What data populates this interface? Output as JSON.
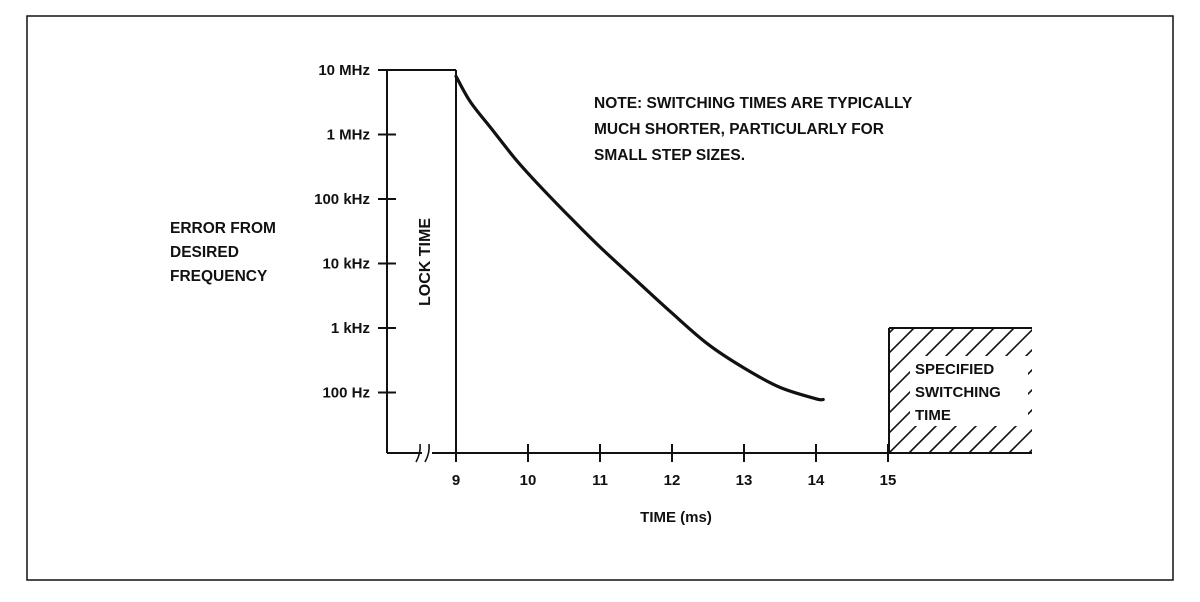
{
  "chart_data": {
    "type": "line",
    "y_scale": "log",
    "xlabel": "TIME (ms)",
    "ylabel_lines": [
      "ERROR FROM",
      "DESIRED",
      "FREQUENCY"
    ],
    "x_ticks": [
      "9",
      "10",
      "11",
      "12",
      "13",
      "14",
      "15"
    ],
    "y_ticks": [
      "10 MHz",
      "1 MHz",
      "100 kHz",
      "10 kHz",
      "1 kHz",
      "100 Hz"
    ],
    "y_tick_values_hz": [
      10000000,
      1000000,
      100000,
      10000,
      1000,
      100
    ],
    "xlim": [
      9,
      15
    ],
    "ylim_hz": [
      10,
      10000000
    ],
    "series": [
      {
        "x": [
          9.0,
          9.2,
          9.5,
          9.8,
          10.0,
          10.3,
          10.6,
          11.0,
          11.5,
          12.0,
          12.5,
          13.0,
          13.5,
          14.0,
          14.1
        ],
        "y_hz": [
          8000000,
          3200000,
          1200000,
          450000,
          250000,
          110000,
          50000,
          18000,
          5500,
          1700,
          560,
          240,
          120,
          80,
          78
        ]
      }
    ],
    "lock_time": {
      "label": "LOCK TIME",
      "x_end": 9
    },
    "specified_region": {
      "label_lines": [
        "SPECIFIED",
        "SWITCHING",
        "TIME"
      ],
      "x_start": 15
    },
    "note_lines": [
      "NOTE: SWITCHING TIMES ARE TYPICALLY",
      "MUCH SHORTER, PARTICULARLY FOR",
      "SMALL STEP SIZES."
    ],
    "axis_break": true,
    "grid": false
  }
}
